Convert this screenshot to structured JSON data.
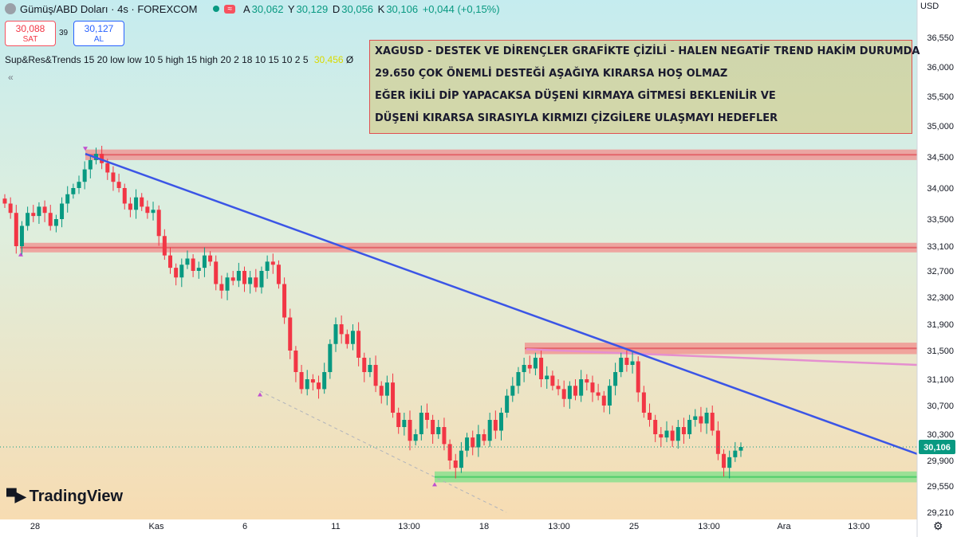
{
  "header": {
    "symbol_title": "Gümüş/ABD Doları · 4s · FOREXCOM",
    "ohlc": [
      {
        "label": "A",
        "value": "30,062"
      },
      {
        "label": "Y",
        "value": "30,129"
      },
      {
        "label": "D",
        "value": "30,056"
      },
      {
        "label": "K",
        "value": "30,106"
      },
      {
        "label": "",
        "value": "+0,044 (+0,15%)"
      }
    ],
    "currency": "USD",
    "wave_badge": "≈"
  },
  "trade": {
    "sell_price": "30,088",
    "sell_label": "SAT",
    "buy_price": "30,127",
    "buy_label": "AL",
    "spread": "39"
  },
  "indicator": {
    "text": "Sup&Res&Trends 15 20 low low 10 5 high 15 high 20 2 18 10 15 10 2 5",
    "value": "30,456",
    "suffix": "Ø",
    "collapse": "«"
  },
  "annotation": [
    "XAGUSD - DESTEK VE DİRENÇLER GRAFİKTE ÇİZİLİ - HALEN NEGATİF TREND HAKİM DURUMDA",
    "29.650 ÇOK ÖNEMLİ DESTEĞİ AŞAĞIYA KIRARSA HOŞ OLMAZ",
    "EĞER İKİLİ DİP YAPACAKSA DÜŞENİ KIRMAYA GİTMESİ BEKLENİLİR VE",
    "DÜŞENİ KIRARSA SIRASIYLA KIRMIZI ÇİZGİLERE ULAŞMAYI HEDEFLER"
  ],
  "logo_text": "TradingView",
  "colors": {
    "up": "#089981",
    "down": "#f23645",
    "trendline": "#3b55e6",
    "resistance": "#f28c8c",
    "support": "#7ee08a"
  },
  "chart_data": {
    "type": "candlestick",
    "ylim": [
      29.21,
      36.55
    ],
    "y_ticks": [
      "36,550",
      "36,000",
      "35,500",
      "35,000",
      "34,500",
      "34,000",
      "33,500",
      "33,100",
      "32,700",
      "32,300",
      "31,900",
      "31,500",
      "31,100",
      "30,700",
      "30,300",
      "29,900",
      "29,550",
      "29,210"
    ],
    "x_ticks": [
      "28",
      "Kas",
      "6",
      "11",
      "13:00",
      "18",
      "13:00",
      "25",
      "13:00",
      "Ara",
      "13:00"
    ],
    "last_price_label": "30,106",
    "horizontal_zones": [
      {
        "name": "resistance",
        "from": 34.45,
        "to": 34.62
      },
      {
        "name": "resistance",
        "from": 33.0,
        "to": 33.15
      },
      {
        "name": "resistance",
        "from": 31.45,
        "to": 31.62
      },
      {
        "name": "support",
        "from": 29.6,
        "to": 29.75
      }
    ],
    "trendline": {
      "from": 34.55,
      "to": 30.0
    },
    "closes": [
      33.75,
      33.6,
      33.1,
      33.4,
      33.6,
      33.55,
      33.7,
      33.6,
      33.4,
      33.5,
      33.75,
      33.9,
      34.0,
      34.1,
      34.3,
      34.45,
      34.55,
      34.4,
      34.25,
      34.1,
      34.0,
      33.75,
      33.65,
      33.85,
      33.7,
      33.6,
      33.65,
      33.25,
      32.95,
      32.75,
      32.6,
      32.8,
      32.9,
      32.7,
      32.75,
      32.95,
      32.85,
      32.5,
      32.4,
      32.6,
      32.55,
      32.7,
      32.5,
      32.6,
      32.45,
      32.7,
      32.85,
      32.8,
      32.5,
      32.0,
      31.5,
      31.2,
      30.95,
      31.1,
      31.05,
      30.95,
      31.2,
      31.6,
      31.9,
      31.75,
      31.6,
      31.8,
      31.4,
      31.2,
      31.3,
      31.0,
      30.85,
      31.05,
      30.6,
      30.4,
      30.5,
      30.2,
      30.3,
      30.6,
      30.5,
      30.3,
      30.4,
      30.15,
      29.9,
      29.8,
      30.05,
      30.25,
      30.1,
      30.3,
      30.2,
      30.5,
      30.35,
      30.6,
      30.85,
      31.0,
      31.2,
      31.3,
      31.25,
      31.4,
      31.1,
      31.15,
      31.0,
      30.95,
      30.8,
      31.0,
      30.85,
      31.1,
      31.05,
      30.9,
      30.85,
      30.7,
      31.0,
      31.2,
      31.4,
      31.3,
      31.35,
      30.9,
      30.6,
      30.5,
      30.3,
      30.25,
      30.35,
      30.2,
      30.4,
      30.3,
      30.5,
      30.55,
      30.45,
      30.6,
      30.35,
      30.0,
      29.8,
      29.95,
      30.05,
      30.106
    ]
  }
}
